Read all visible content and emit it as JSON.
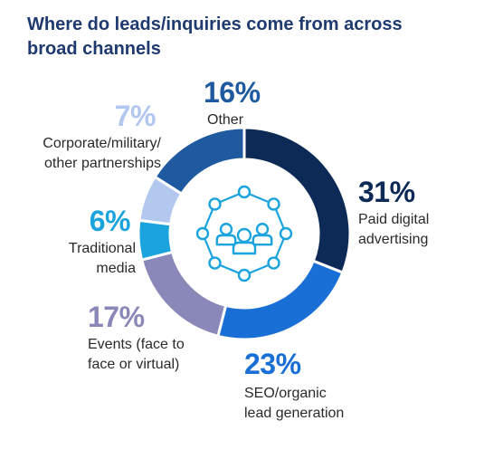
{
  "title_lines": [
    "Where do leads/inquiries come from across",
    "broad channels"
  ],
  "chart_data": {
    "type": "pie",
    "style": "donut",
    "title": "Where do leads/inquiries come from across broad channels",
    "center_icon": "people-network-icon",
    "slices": [
      {
        "label_lines": [
          "Paid digital",
          "advertising"
        ],
        "label": "Paid digital advertising",
        "value": 31,
        "pct_label": "31%",
        "color": "#0d2a57"
      },
      {
        "label_lines": [
          "SEO/organic",
          "lead generation"
        ],
        "label": "SEO/organic lead generation",
        "value": 23,
        "pct_label": "23%",
        "color": "#1a6fd6"
      },
      {
        "label_lines": [
          "Events (face to",
          "face or virtual)"
        ],
        "label": "Events (face to face or virtual)",
        "value": 17,
        "pct_label": "17%",
        "color": "#8a88b8"
      },
      {
        "label_lines": [
          "Traditional",
          "media"
        ],
        "label": "Traditional media",
        "value": 6,
        "pct_label": "6%",
        "color": "#1aa3dd"
      },
      {
        "label_lines": [
          "Corporate/military/",
          "other partnerships"
        ],
        "label": "Corporate/military/other partnerships",
        "value": 7,
        "pct_label": "7%",
        "color": "#b3c8ef"
      },
      {
        "label_lines": [
          "Other"
        ],
        "label": "Other",
        "value": 16,
        "pct_label": "16%",
        "color": "#1f5aa0"
      }
    ]
  }
}
